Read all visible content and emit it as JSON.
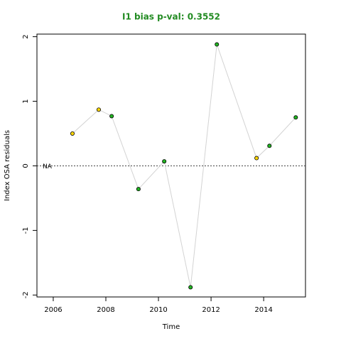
{
  "chart_data": {
    "type": "line",
    "title": "I1 bias p-val: 0.3552",
    "title_color": "#228b22",
    "x_label": "Time",
    "y_label": "Index OSA residuals",
    "x": [
      2006.73,
      2007.73,
      2008.22,
      2009.24,
      2010.22,
      2011.22,
      2012.22,
      2013.73,
      2014.22,
      2015.22
    ],
    "series": [
      {
        "name": "I1",
        "color": "#d3d3d3",
        "values": [
          0.5,
          0.87,
          0.77,
          -0.36,
          0.07,
          -1.88,
          1.88,
          0.12,
          0.31,
          0.75
        ],
        "point_colors": [
          "#ffd700",
          "#ffd700",
          "#22b422",
          "#22b422",
          "#22b422",
          "#22b422",
          "#22b422",
          "#ffd700",
          "#22b422",
          "#22b422"
        ]
      }
    ],
    "hline": 0,
    "hline_label": "NA",
    "xlim": [
      2005.38,
      2015.59
    ],
    "ylim": [
      -2.03,
      2.04
    ],
    "xticks": [
      2006,
      2008,
      2010,
      2012,
      2014
    ],
    "yticks": [
      -2,
      -1,
      0,
      1,
      2
    ]
  }
}
